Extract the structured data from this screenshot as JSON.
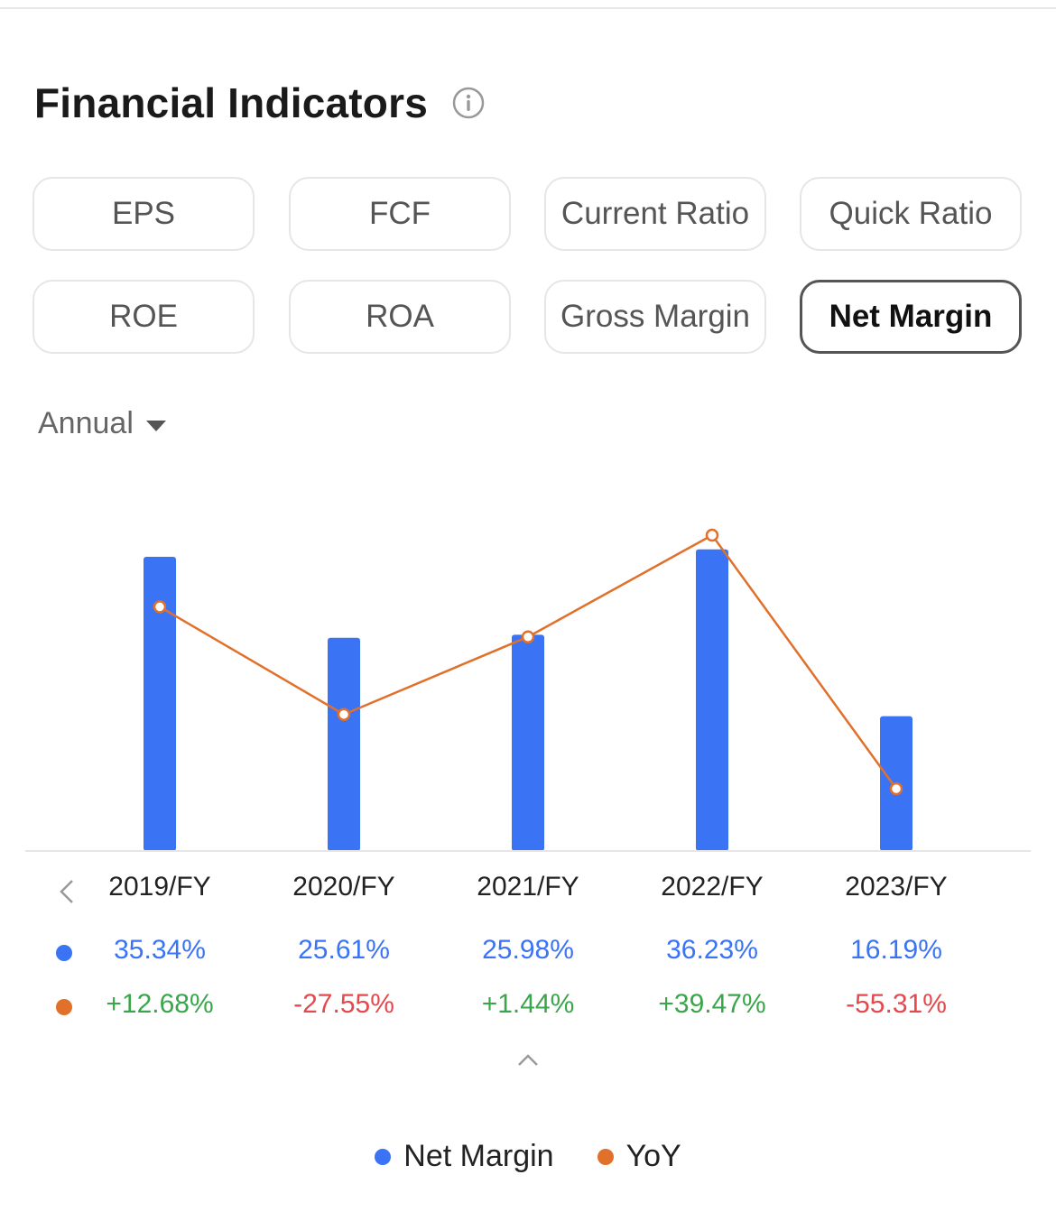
{
  "header": {
    "title": "Financial Indicators",
    "info_icon": "info-circle-icon"
  },
  "tabs": [
    {
      "label": "EPS",
      "active": false
    },
    {
      "label": "FCF",
      "active": false
    },
    {
      "label": "Current Ratio",
      "active": false
    },
    {
      "label": "Quick Ratio",
      "active": false
    },
    {
      "label": "ROE",
      "active": false
    },
    {
      "label": "ROA",
      "active": false
    },
    {
      "label": "Gross Margin",
      "active": false
    },
    {
      "label": "Net Margin",
      "active": true
    }
  ],
  "period": {
    "label": "Annual",
    "icon": "caret-down-icon"
  },
  "colors": {
    "bar": "#3b73f5",
    "line": "#e0702a",
    "positive": "#3aa64b",
    "negative": "#e5484d"
  },
  "chart_data": {
    "type": "bar",
    "categories": [
      "2019/FY",
      "2020/FY",
      "2021/FY",
      "2022/FY",
      "2023/FY"
    ],
    "series": [
      {
        "name": "Net Margin",
        "type": "bar",
        "values": [
          35.34,
          25.61,
          25.98,
          36.23,
          16.19
        ],
        "labels": [
          "35.34%",
          "25.61%",
          "25.98%",
          "36.23%",
          "16.19%"
        ]
      },
      {
        "name": "YoY",
        "type": "line",
        "values": [
          12.68,
          -27.55,
          1.44,
          39.47,
          -55.31
        ],
        "labels": [
          "+12.68%",
          "-27.55%",
          "+1.44%",
          "+39.47%",
          "-55.31%"
        ]
      }
    ],
    "legend": [
      "Net Margin",
      "YoY"
    ],
    "legend_position": "bottom",
    "grid": false
  }
}
